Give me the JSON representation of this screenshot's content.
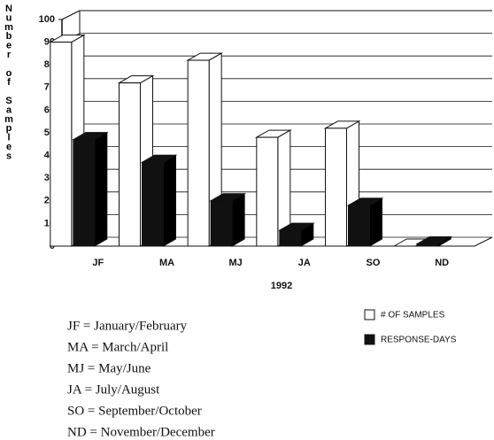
{
  "chart_data": {
    "type": "bar3d",
    "ylabel": "Number of Samples",
    "xlabel": "1992",
    "categories": [
      "JF",
      "MA",
      "MJ",
      "JA",
      "SO",
      "ND"
    ],
    "series": [
      {
        "name": "# OF SAMPLES",
        "color": "#ffffff",
        "values": [
          90,
          72,
          82,
          48,
          52,
          0
        ]
      },
      {
        "name": "RESPONSE-DAYS",
        "color": "#111111",
        "values": [
          47,
          37,
          20,
          7,
          18,
          1
        ]
      }
    ],
    "ylim": [
      0,
      100
    ],
    "yticks": [
      0,
      10,
      20,
      30,
      40,
      50,
      60,
      70,
      80,
      90,
      100
    ],
    "grid": true,
    "notes": [
      "JF = January/February",
      "MA = March/April",
      "MJ = May/June",
      "JA = July/August",
      "SO = September/October",
      "ND = November/December"
    ]
  }
}
